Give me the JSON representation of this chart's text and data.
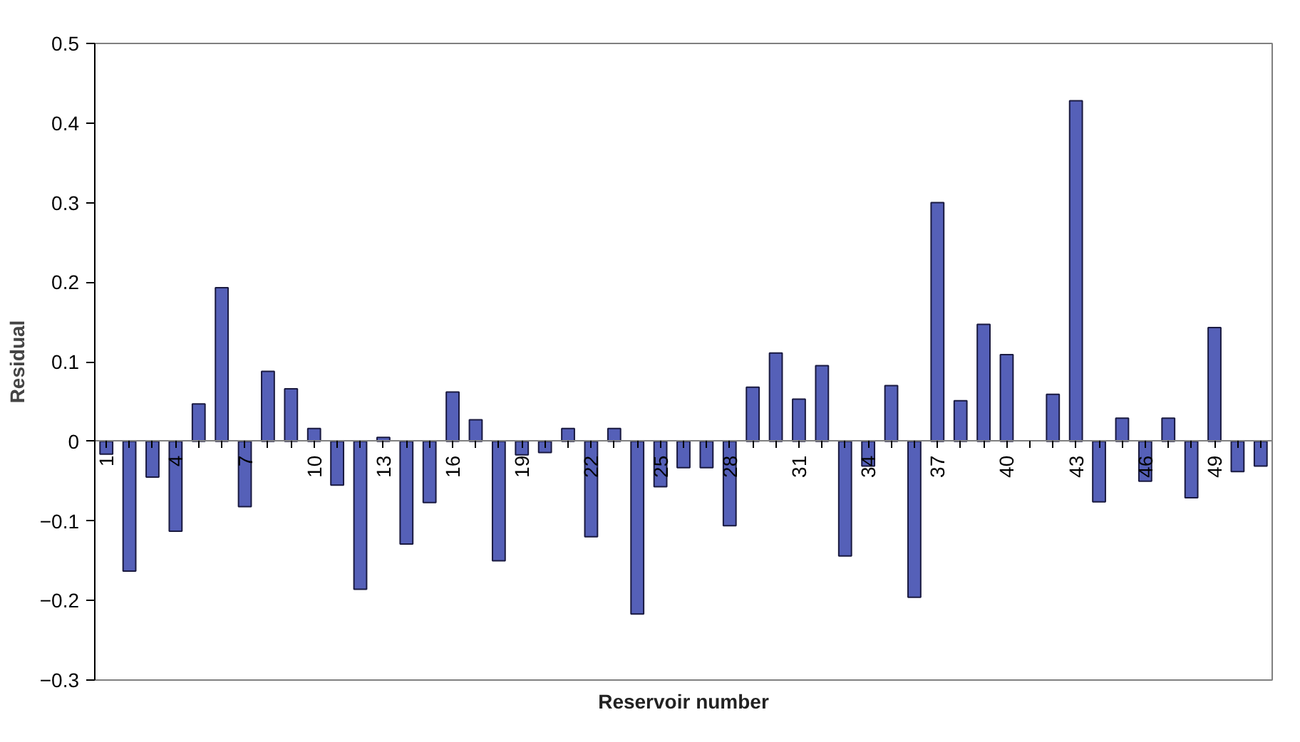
{
  "chart_data": {
    "type": "bar",
    "xlabel": "Reservoir number",
    "ylabel": "Residual",
    "categories": [
      "1",
      null,
      null,
      "4",
      null,
      null,
      "7",
      null,
      null,
      "10",
      null,
      null,
      "13",
      null,
      null,
      "16",
      null,
      null,
      "19",
      null,
      null,
      "22",
      null,
      null,
      "25",
      null,
      null,
      "28",
      null,
      null,
      "31",
      null,
      null,
      "34",
      null,
      null,
      "37",
      null,
      null,
      "40",
      null,
      null,
      "43",
      null,
      null,
      "46",
      null,
      null,
      "49",
      null,
      null
    ],
    "values": [
      -0.016,
      -0.163,
      -0.045,
      -0.113,
      0.047,
      0.193,
      -0.082,
      0.088,
      0.066,
      0.016,
      -0.055,
      -0.186,
      0.005,
      -0.129,
      -0.077,
      0.062,
      0.027,
      -0.15,
      -0.017,
      -0.014,
      0.016,
      -0.12,
      0.016,
      -0.217,
      -0.057,
      -0.033,
      -0.033,
      -0.106,
      0.068,
      0.111,
      0.053,
      0.095,
      -0.144,
      -0.031,
      0.07,
      -0.196,
      0.3,
      0.051,
      0.147,
      0.109,
      null,
      0.059,
      0.428,
      -0.076,
      0.029,
      -0.05,
      0.029,
      -0.071,
      0.143,
      -0.038,
      -0.031
    ],
    "color": "#5560b8",
    "ylim": [
      -0.3,
      0.5
    ],
    "yticks": [
      -0.3,
      -0.2,
      -0.1,
      0,
      0.1,
      0.2,
      0.3,
      0.4,
      0.5
    ],
    "grid": false
  }
}
